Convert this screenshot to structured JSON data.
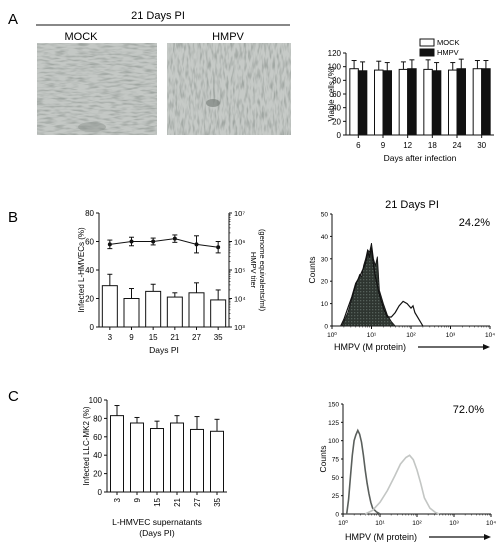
{
  "panel_a": {
    "letter": "A",
    "header": "21 Days PI",
    "micrograph_labels": [
      "MOCK",
      "HMPV"
    ]
  },
  "panel_b": {
    "letter": "B",
    "flow_title": "21 Days PI",
    "flow_percent": "24.2%"
  },
  "panel_c": {
    "letter": "C",
    "flow_percent": "72.0%"
  },
  "chart_data": [
    {
      "id": "viability",
      "type": "bar",
      "ylabel": "Viable cells (%)",
      "xlabel": "Days after infection",
      "categories": [
        "6",
        "9",
        "12",
        "18",
        "24",
        "30"
      ],
      "ylim": [
        0,
        120
      ],
      "yticks": [
        "0",
        "20",
        "40",
        "60",
        "80",
        "100",
        "120"
      ],
      "legend": "top-right",
      "series": [
        {
          "name": "MOCK",
          "color": "#ffffff",
          "values": [
            97,
            95,
            96,
            96,
            95,
            97
          ],
          "errors": [
            12,
            13,
            11,
            14,
            11,
            12
          ]
        },
        {
          "name": "HMPV",
          "color": "#111111",
          "values": [
            94,
            94,
            97,
            94,
            97,
            97
          ],
          "errors": [
            13,
            12,
            13,
            12,
            14,
            12
          ]
        }
      ]
    },
    {
      "id": "lhmvec_infection",
      "type": "bar",
      "ylabel": "Infected L-HMVECs (%)",
      "y2label": "HMPV titer (genome equivalents/ml)",
      "xlabel": "Days PI",
      "categories": [
        "3",
        "9",
        "15",
        "21",
        "27",
        "35"
      ],
      "ylim": [
        0,
        80
      ],
      "yticks": [
        "0",
        "20",
        "40",
        "60",
        "80"
      ],
      "y2ticks": [
        "10³",
        "10⁴",
        "10⁵",
        "10⁶",
        "10⁷"
      ],
      "y2lim_log10": [
        3,
        7
      ],
      "series": [
        {
          "type": "bar",
          "values": [
            29,
            20,
            25,
            21,
            24,
            19
          ],
          "errors": [
            8,
            7,
            5,
            3,
            7,
            7
          ]
        },
        {
          "type": "line",
          "axis": "right",
          "values_log10": [
            5.9,
            6.0,
            6.0,
            6.1,
            5.9,
            5.8
          ],
          "errors_log10": [
            0.15,
            0.15,
            0.12,
            0.13,
            0.3,
            0.2
          ]
        }
      ]
    },
    {
      "id": "flow_b",
      "type": "line",
      "ylabel": "Counts",
      "xlabel": "HMPV (M protein)",
      "ylim": [
        0,
        50
      ],
      "yticks": [
        "0",
        "10",
        "20",
        "30",
        "40",
        "50"
      ],
      "xticks": [
        "10⁰",
        "10¹",
        "10²",
        "10³",
        "10⁴"
      ],
      "xlim_log10": [
        0,
        4
      ]
    },
    {
      "id": "llcmk2_infection",
      "type": "bar",
      "ylabel": "Infected LLC-MK2 (%)",
      "xlabel": "L-HMVEC supernatants (Days PI)",
      "xlabel_lines": [
        "L-HMVEC supernatants",
        "(Days PI)"
      ],
      "categories": [
        "3",
        "9",
        "15",
        "21",
        "27",
        "35"
      ],
      "ylim": [
        0,
        100
      ],
      "yticks": [
        "0",
        "20",
        "40",
        "60",
        "80",
        "100"
      ],
      "series": [
        {
          "type": "bar",
          "values": [
            83,
            75,
            69,
            75,
            68,
            66
          ],
          "errors": [
            11,
            6,
            8,
            8,
            14,
            13
          ]
        }
      ]
    },
    {
      "id": "flow_c",
      "type": "line",
      "ylabel": "Counts",
      "xlabel": "HMPV (M protein)",
      "ylim": [
        0,
        150
      ],
      "yticks": [
        "0",
        "25",
        "50",
        "75",
        "100",
        "125",
        "150"
      ],
      "xticks": [
        "10⁰",
        "10¹",
        "10²",
        "10³",
        "10⁴"
      ],
      "xlim_log10": [
        0,
        4
      ]
    }
  ]
}
